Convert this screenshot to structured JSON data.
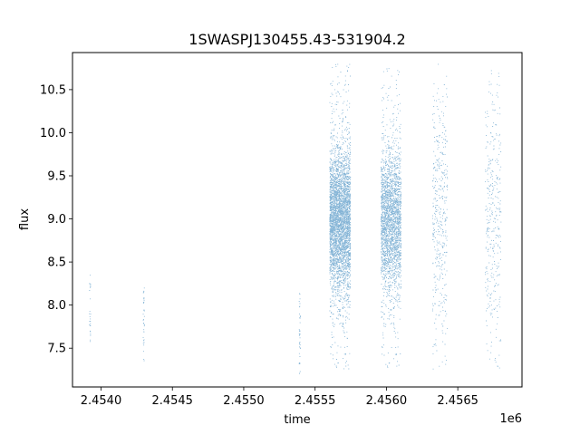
{
  "chart_data": {
    "type": "scatter",
    "title": "1SWASPJ130455.43-531904.2",
    "xlabel": "time",
    "ylabel": "flux",
    "x_offset_label": "1e6",
    "xlim": [
      2453800,
      2456950
    ],
    "ylim": [
      7.05,
      10.93
    ],
    "x_ticks": [
      2454000,
      2454500,
      2455000,
      2455500,
      2456000,
      2456500
    ],
    "x_tick_labels": [
      "2.4540",
      "2.4545",
      "2.4550",
      "2.4555",
      "2.4560",
      "2.4565"
    ],
    "y_ticks": [
      7.5,
      8.0,
      8.5,
      9.0,
      9.5,
      10.0,
      10.5
    ],
    "y_tick_labels": [
      "7.5",
      "8.0",
      "8.5",
      "9.0",
      "9.5",
      "10.0",
      "10.5"
    ],
    "grid": false,
    "marker_color": "#1f77b4",
    "clusters": [
      {
        "x_range": [
          2453915,
          2453925
        ],
        "y_range": [
          7.5,
          8.35
        ],
        "count": 26
      },
      {
        "x_range": [
          2454293,
          2454302
        ],
        "y_range": [
          7.35,
          8.2
        ],
        "count": 34
      },
      {
        "x_range": [
          2455385,
          2455395
        ],
        "y_range": [
          7.2,
          8.15
        ],
        "count": 40
      },
      {
        "x_range": [
          2455600,
          2455745
        ],
        "y_range": [
          7.25,
          10.8
        ],
        "center": 8.95,
        "spread": 0.42,
        "count": 4200
      },
      {
        "x_range": [
          2455960,
          2456100
        ],
        "y_range": [
          7.25,
          10.75
        ],
        "center": 8.95,
        "spread": 0.42,
        "count": 4200
      },
      {
        "x_range": [
          2456320,
          2456425
        ],
        "y_range": [
          7.25,
          10.8
        ],
        "center": 9.0,
        "spread": 0.8,
        "count": 420
      },
      {
        "x_range": [
          2456690,
          2456800
        ],
        "y_range": [
          7.25,
          10.8
        ],
        "center": 9.0,
        "spread": 0.8,
        "count": 360
      }
    ]
  }
}
